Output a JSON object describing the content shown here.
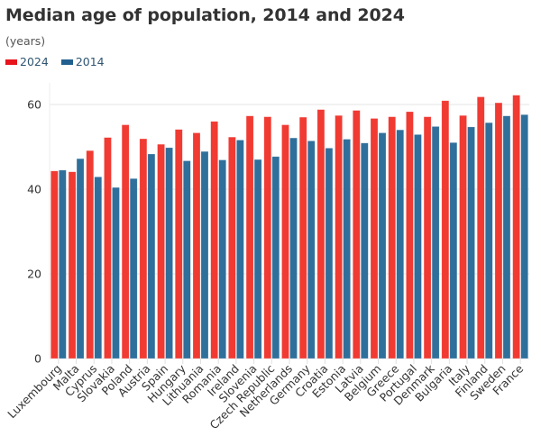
{
  "chart_data": {
    "type": "bar",
    "title": "Median age of population, 2014 and 2024",
    "subtitle": "(years)",
    "xlabel": "",
    "ylabel": "",
    "ylim": [
      0,
      65
    ],
    "yticks": [
      0,
      20,
      40,
      60
    ],
    "grid": true,
    "legend_position": "top-left",
    "categories": [
      "Luxembourg",
      "Malta",
      "Cyprus",
      "Slovakia",
      "Poland",
      "Austria",
      "Spain",
      "Hungary",
      "Lithuania",
      "Romania",
      "Ireland",
      "Slovenia",
      "Czech Republic",
      "Netherlands",
      "Germany",
      "Croatia",
      "Estonia",
      "Latvia",
      "Belgium",
      "Greece",
      "Portugal",
      "Denmark",
      "Bulgaria",
      "Italy",
      "Finland",
      "Sweden",
      "France"
    ],
    "series": [
      {
        "name": "2024",
        "color": "#f03a32",
        "values": [
          44.3,
          44.1,
          49.1,
          52.2,
          55.2,
          51.9,
          50.6,
          54.1,
          53.3,
          56.0,
          52.3,
          57.3,
          57.1,
          55.2,
          57.0,
          58.8,
          57.4,
          58.6,
          56.7,
          57.1,
          58.3,
          57.1,
          60.9,
          57.4,
          61.8,
          60.4,
          62.2
        ]
      },
      {
        "name": "2014",
        "color": "#2f6f9b",
        "values": [
          44.5,
          47.2,
          42.9,
          40.4,
          42.5,
          48.3,
          49.8,
          46.7,
          48.9,
          46.9,
          51.6,
          47.0,
          47.7,
          52.1,
          51.4,
          49.7,
          51.8,
          50.9,
          53.3,
          54.0,
          52.9,
          54.8,
          51.0,
          54.7,
          55.7,
          57.3,
          57.6
        ]
      }
    ]
  },
  "legend": {
    "items": [
      {
        "label": "2024",
        "color": "#e8141c"
      },
      {
        "label": "2014",
        "color": "#215f8f"
      }
    ]
  }
}
